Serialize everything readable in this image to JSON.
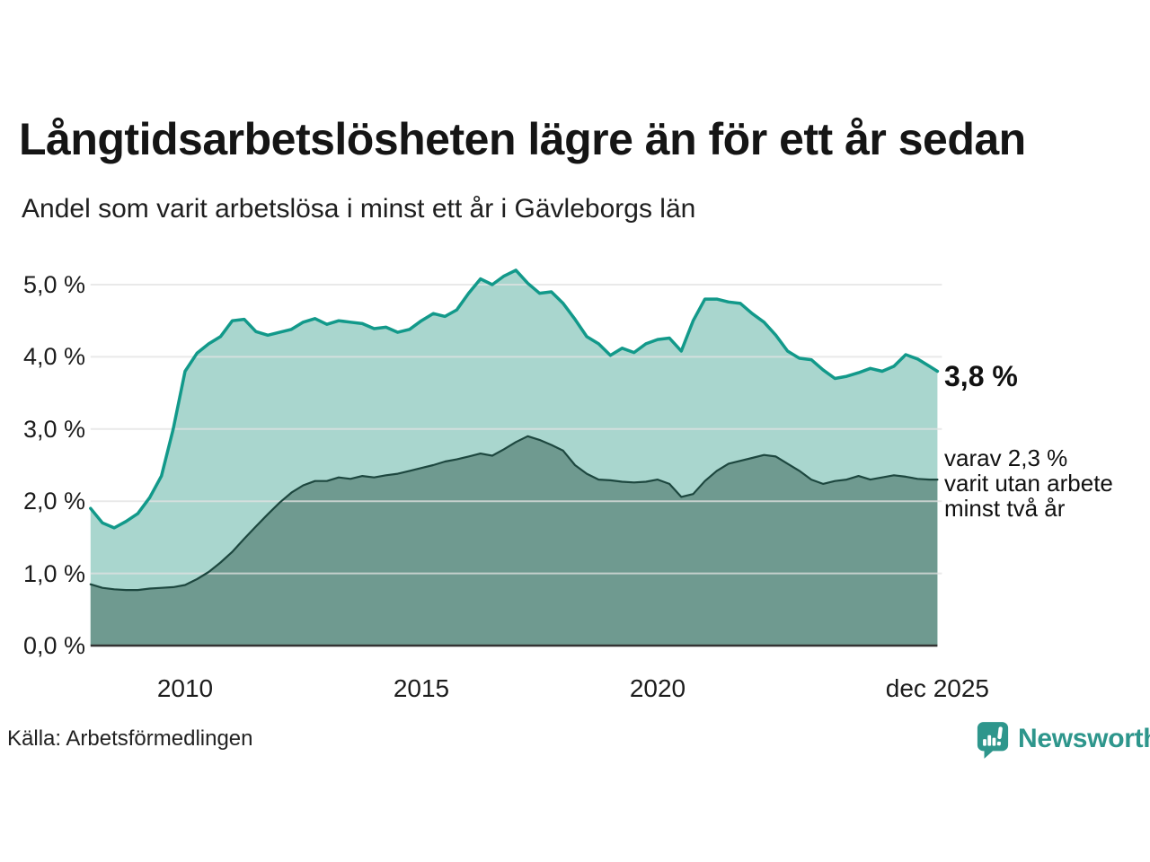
{
  "header": {
    "title": "Långtidsarbetslösheten lägre än för ett år sedan",
    "subtitle": "Andel som varit arbetslösa i minst ett år i Gävleborgs län"
  },
  "chart_data": {
    "type": "area",
    "title": "Långtidsarbetslösheten lägre än för ett år sedan",
    "subtitle": "Andel som varit arbetslösa i minst ett år i Gävleborgs län",
    "unit": "%",
    "grid": true,
    "legend_position": "none",
    "xlim": [
      2008.0,
      2025.92
    ],
    "ylim": [
      0,
      5.3
    ],
    "x": [
      2008.0,
      2008.25,
      2008.5,
      2008.75,
      2009.0,
      2009.25,
      2009.5,
      2009.75,
      2010.0,
      2010.25,
      2010.5,
      2010.75,
      2011.0,
      2011.25,
      2011.5,
      2011.75,
      2012.0,
      2012.25,
      2012.5,
      2012.75,
      2013.0,
      2013.25,
      2013.5,
      2013.75,
      2014.0,
      2014.25,
      2014.5,
      2014.75,
      2015.0,
      2015.25,
      2015.5,
      2015.75,
      2016.0,
      2016.25,
      2016.5,
      2016.75,
      2017.0,
      2017.25,
      2017.5,
      2017.75,
      2018.0,
      2018.25,
      2018.5,
      2018.75,
      2019.0,
      2019.25,
      2019.5,
      2019.75,
      2020.0,
      2020.25,
      2020.5,
      2020.75,
      2021.0,
      2021.25,
      2021.5,
      2021.75,
      2022.0,
      2022.25,
      2022.5,
      2022.75,
      2023.0,
      2023.25,
      2023.5,
      2023.75,
      2024.0,
      2024.25,
      2024.5,
      2024.75,
      2025.0,
      2025.25,
      2025.5,
      2025.75,
      2025.92
    ],
    "series": [
      {
        "name": "Andel som varit arbetslösa i minst ett år",
        "line_color": "#12998a",
        "fill_color": "#a9d6ce",
        "line_width": 3.5,
        "end_value": 3.8,
        "values": [
          1.9,
          1.7,
          1.63,
          1.72,
          1.83,
          2.05,
          2.35,
          3.0,
          3.8,
          4.05,
          4.18,
          4.28,
          4.5,
          4.52,
          4.35,
          4.3,
          4.34,
          4.38,
          4.48,
          4.53,
          4.45,
          4.5,
          4.48,
          4.46,
          4.39,
          4.41,
          4.34,
          4.38,
          4.5,
          4.6,
          4.56,
          4.65,
          4.88,
          5.08,
          5.0,
          5.12,
          5.2,
          5.02,
          4.88,
          4.9,
          4.74,
          4.52,
          4.28,
          4.18,
          4.02,
          4.12,
          4.06,
          4.18,
          4.24,
          4.26,
          4.08,
          4.5,
          4.8,
          4.8,
          4.76,
          4.74,
          4.6,
          4.48,
          4.3,
          4.08,
          3.98,
          3.96,
          3.82,
          3.7,
          3.73,
          3.78,
          3.84,
          3.8,
          3.87,
          4.03,
          3.97,
          3.87,
          3.8
        ]
      },
      {
        "name": "varav varit utan arbete minst två år",
        "line_color": "#1d473f",
        "fill_color": "#6f9a90",
        "line_width": 2.2,
        "end_value": 2.3,
        "values": [
          0.85,
          0.8,
          0.78,
          0.77,
          0.77,
          0.79,
          0.8,
          0.81,
          0.84,
          0.92,
          1.02,
          1.15,
          1.3,
          1.48,
          1.65,
          1.82,
          1.98,
          2.12,
          2.22,
          2.28,
          2.28,
          2.33,
          2.31,
          2.35,
          2.33,
          2.36,
          2.38,
          2.42,
          2.46,
          2.5,
          2.55,
          2.58,
          2.62,
          2.66,
          2.63,
          2.72,
          2.82,
          2.9,
          2.85,
          2.78,
          2.7,
          2.5,
          2.38,
          2.3,
          2.29,
          2.27,
          2.26,
          2.27,
          2.3,
          2.24,
          2.06,
          2.1,
          2.28,
          2.42,
          2.52,
          2.56,
          2.6,
          2.64,
          2.62,
          2.52,
          2.42,
          2.3,
          2.24,
          2.28,
          2.3,
          2.35,
          2.3,
          2.33,
          2.36,
          2.34,
          2.31,
          2.3,
          2.3
        ]
      }
    ],
    "y_ticks": [
      {
        "value": 5.0,
        "label": "5,0 %"
      },
      {
        "value": 4.0,
        "label": "4,0 %"
      },
      {
        "value": 3.0,
        "label": "3,0 %"
      },
      {
        "value": 2.0,
        "label": "2,0 %"
      },
      {
        "value": 1.0,
        "label": "1,0 %"
      },
      {
        "value": 0.0,
        "label": "0,0 %"
      }
    ],
    "x_ticks": [
      {
        "year": 2010,
        "label": "2010"
      },
      {
        "year": 2015,
        "label": "2015"
      },
      {
        "year": 2020,
        "label": "2020"
      },
      {
        "year": 2025.92,
        "label": "dec 2025"
      }
    ],
    "annotations": {
      "end_value_main": "3,8 %",
      "end_value_sub": "varav 2,3 %\nvarit utan arbete\nminst två år"
    }
  },
  "footer": {
    "source": "Källa: Arbetsförmedlingen",
    "brand": "Newsworthy"
  },
  "colors": {
    "accent_teal": "#12998a",
    "light_fill": "#a9d6ce",
    "dark_fill": "#6f9a90",
    "dark_line": "#1d473f",
    "gridline": "#e2e2e2",
    "axis_line": "#333333",
    "text": "#151515",
    "brand_teal": "#2e968c"
  },
  "icons": {
    "brand_logo": "speech-bubble-bar-chart-icon"
  }
}
